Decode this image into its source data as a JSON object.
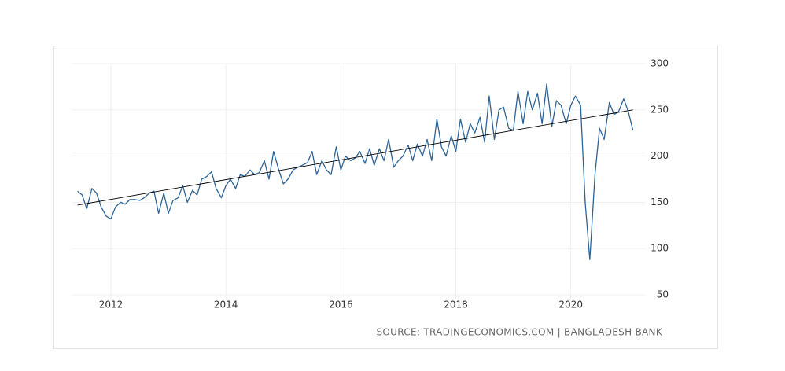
{
  "chart_data": {
    "type": "line",
    "source": "SOURCE: TRADINGECONOMICS.COM | BANGLADESH BANK",
    "x": [
      2011.42,
      2011.5,
      2011.58,
      2011.67,
      2011.75,
      2011.83,
      2011.92,
      2012.0,
      2012.08,
      2012.17,
      2012.25,
      2012.33,
      2012.42,
      2012.5,
      2012.58,
      2012.67,
      2012.75,
      2012.83,
      2012.92,
      2013.0,
      2013.08,
      2013.17,
      2013.25,
      2013.33,
      2013.42,
      2013.5,
      2013.58,
      2013.67,
      2013.75,
      2013.83,
      2013.92,
      2014.0,
      2014.08,
      2014.17,
      2014.25,
      2014.33,
      2014.42,
      2014.5,
      2014.58,
      2014.67,
      2014.75,
      2014.83,
      2014.92,
      2015.0,
      2015.08,
      2015.17,
      2015.25,
      2015.33,
      2015.42,
      2015.5,
      2015.58,
      2015.67,
      2015.75,
      2015.83,
      2015.92,
      2016.0,
      2016.08,
      2016.17,
      2016.25,
      2016.33,
      2016.42,
      2016.5,
      2016.58,
      2016.67,
      2016.75,
      2016.83,
      2016.92,
      2017.0,
      2017.08,
      2017.17,
      2017.25,
      2017.33,
      2017.42,
      2017.5,
      2017.58,
      2017.67,
      2017.75,
      2017.83,
      2017.92,
      2018.0,
      2018.08,
      2018.17,
      2018.25,
      2018.33,
      2018.42,
      2018.5,
      2018.58,
      2018.67,
      2018.75,
      2018.83,
      2018.92,
      2019.0,
      2019.08,
      2019.17,
      2019.25,
      2019.33,
      2019.42,
      2019.5,
      2019.58,
      2019.67,
      2019.75,
      2019.83,
      2019.92,
      2020.0,
      2020.08,
      2020.17,
      2020.25,
      2020.33,
      2020.42,
      2020.5,
      2020.58,
      2020.67,
      2020.75,
      2020.83,
      2020.92,
      2021.0,
      2021.08
    ],
    "series": [
      {
        "color": "#2f6497",
        "values": [
          162,
          158,
          143,
          165,
          160,
          145,
          135,
          132,
          145,
          150,
          148,
          153,
          153,
          152,
          155,
          160,
          162,
          138,
          160,
          138,
          152,
          155,
          168,
          150,
          163,
          158,
          175,
          178,
          183,
          165,
          155,
          168,
          175,
          165,
          180,
          178,
          185,
          180,
          182,
          195,
          175,
          205,
          185,
          170,
          175,
          185,
          188,
          190,
          193,
          205,
          180,
          195,
          185,
          180,
          210,
          185,
          200,
          195,
          198,
          205,
          192,
          208,
          190,
          208,
          195,
          218,
          188,
          195,
          200,
          212,
          195,
          213,
          200,
          218,
          195,
          240,
          210,
          200,
          222,
          205,
          240,
          215,
          235,
          225,
          242,
          215,
          265,
          218,
          250,
          253,
          230,
          228,
          270,
          235,
          270,
          250,
          268,
          235,
          278,
          232,
          260,
          255,
          235,
          255,
          265,
          255,
          150,
          88,
          180,
          230,
          218,
          258,
          245,
          248,
          262,
          248,
          228
        ]
      }
    ],
    "trend": {
      "color": "#000000",
      "x": [
        2011.42,
        2021.08
      ],
      "values": [
        147,
        250
      ]
    },
    "xlim": [
      2011.33,
      2021.29
    ],
    "ylim": [
      50,
      300
    ],
    "xticks": [
      2012,
      2014,
      2016,
      2018,
      2020
    ],
    "yticks": [
      50,
      100,
      150,
      200,
      250,
      300
    ],
    "grid": true
  }
}
